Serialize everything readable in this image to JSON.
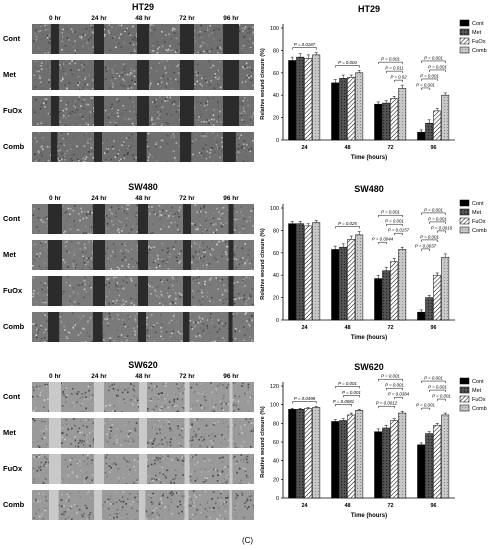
{
  "caption": "(C)",
  "time_columns": [
    "0 hr",
    "24 hr",
    "48 hr",
    "72 hr",
    "96 hr"
  ],
  "treatment_rows": [
    "Cont",
    "Met",
    "FuOx",
    "Comb"
  ],
  "legend": [
    "Cont",
    "Met",
    "FuOx",
    "Comb"
  ],
  "colors": {
    "cont": "#000000",
    "met": "#444444",
    "fuox": "#ffffff",
    "comb": "#bdbdbd"
  },
  "panels": [
    {
      "micrograph_title": "HT29",
      "chart_data": {
        "type": "bar",
        "title": "HT29",
        "xlabel": "Time (hours)",
        "ylabel": "Relative wound closure (%)",
        "ylim": [
          0,
          100
        ],
        "yticks": [
          "0",
          "20",
          "40",
          "60",
          "80",
          "100"
        ],
        "categories": [
          "24",
          "48",
          "72",
          "96"
        ],
        "series": [
          {
            "name": "Cont",
            "values": [
              71,
              51,
              32,
              7
            ]
          },
          {
            "name": "Met",
            "values": [
              74,
              55,
              33,
              15
            ]
          },
          {
            "name": "FuOx",
            "values": [
              73,
              56,
              37,
              26
            ]
          },
          {
            "name": "Comb",
            "values": [
              76,
              60,
              46,
              40
            ]
          }
        ],
        "errors": [
          [
            3,
            3,
            2,
            2
          ],
          [
            3,
            3,
            2,
            3
          ],
          [
            3,
            2,
            2,
            2
          ],
          [
            2,
            2,
            3,
            2
          ]
        ],
        "annotations": [
          {
            "group": 0,
            "from": 0,
            "to": 3,
            "text": "P = 0.0187"
          },
          {
            "group": 1,
            "from": 0,
            "to": 3,
            "text": "P = 0.004"
          },
          {
            "group": 2,
            "from": 0,
            "to": 3,
            "text": "P = 0.001"
          },
          {
            "group": 2,
            "from": 1,
            "to": 3,
            "text": "P = 0.011"
          },
          {
            "group": 2,
            "from": 2,
            "to": 3,
            "text": "P = 0.02"
          },
          {
            "group": 3,
            "from": 0,
            "to": 3,
            "text": "P = 0.001"
          },
          {
            "group": 3,
            "from": 1,
            "to": 3,
            "text": "P = 0.001"
          },
          {
            "group": 3,
            "from": 0,
            "to": 2,
            "text": "P = 0.001"
          },
          {
            "group": 3,
            "from": 0,
            "to": 1,
            "text": "P = 0.001"
          }
        ]
      }
    },
    {
      "micrograph_title": "SW480",
      "chart_data": {
        "type": "bar",
        "title": "SW480",
        "xlabel": "Time (hours)",
        "ylabel": "Relative wound closure (%)",
        "ylim": [
          0,
          100
        ],
        "yticks": [
          "0",
          "20",
          "40",
          "60",
          "80",
          "100"
        ],
        "categories": [
          "24",
          "48",
          "72",
          "96"
        ],
        "series": [
          {
            "name": "Cont",
            "values": [
              86,
              63,
              37,
              7
            ]
          },
          {
            "name": "Met",
            "values": [
              86,
              65,
              44,
              20
            ]
          },
          {
            "name": "FuOx",
            "values": [
              84,
              72,
              52,
              40
            ]
          },
          {
            "name": "Comb",
            "values": [
              87,
              76,
              63,
              56
            ]
          }
        ],
        "errors": [
          [
            2,
            3,
            3,
            2
          ],
          [
            2,
            3,
            3,
            2
          ],
          [
            2,
            3,
            3,
            2
          ],
          [
            2,
            3,
            2,
            3
          ]
        ],
        "annotations": [
          {
            "group": 1,
            "from": 0,
            "to": 3,
            "text": "P = 0.025"
          },
          {
            "group": 2,
            "from": 0,
            "to": 3,
            "text": "P = 0.001"
          },
          {
            "group": 2,
            "from": 1,
            "to": 3,
            "text": "P = 0.001"
          },
          {
            "group": 2,
            "from": 2,
            "to": 3,
            "text": "P = 0.0157"
          },
          {
            "group": 2,
            "from": 0,
            "to": 1,
            "text": "P = 0.0044"
          },
          {
            "group": 3,
            "from": 0,
            "to": 3,
            "text": "P = 0.001"
          },
          {
            "group": 3,
            "from": 1,
            "to": 3,
            "text": "P = 0.001"
          },
          {
            "group": 3,
            "from": 2,
            "to": 3,
            "text": "P = 0.0016"
          },
          {
            "group": 3,
            "from": 0,
            "to": 2,
            "text": "P = 0.001"
          },
          {
            "group": 3,
            "from": 0,
            "to": 1,
            "text": "P = 0.0037"
          }
        ]
      }
    },
    {
      "micrograph_title": "SW620",
      "chart_data": {
        "type": "bar",
        "title": "SW620",
        "xlabel": "Time (hours)",
        "ylabel": "Relative wound closure (%)",
        "ylim": [
          0,
          120
        ],
        "yticks": [
          "0",
          "20",
          "40",
          "60",
          "80",
          "100",
          "120"
        ],
        "categories": [
          "24",
          "48",
          "72",
          "96"
        ],
        "series": [
          {
            "name": "Cont",
            "values": [
              95,
              82,
              71,
              57
            ]
          },
          {
            "name": "Met",
            "values": [
              95,
              83,
              75,
              69
            ]
          },
          {
            "name": "FuOx",
            "values": [
              96,
              89,
              83,
              78
            ]
          },
          {
            "name": "Comb",
            "values": [
              97,
              94,
              91,
              89
            ]
          }
        ],
        "errors": [
          [
            1,
            2,
            3,
            2
          ],
          [
            1,
            2,
            3,
            2
          ],
          [
            1,
            2,
            2,
            2
          ],
          [
            1,
            1,
            2,
            2
          ]
        ],
        "annotations": [
          {
            "group": 0,
            "from": 0,
            "to": 3,
            "text": "P = 0.0498"
          },
          {
            "group": 1,
            "from": 0,
            "to": 3,
            "text": "P = 0.001"
          },
          {
            "group": 1,
            "from": 1,
            "to": 3,
            "text": "P = 0.001"
          },
          {
            "group": 1,
            "from": 0,
            "to": 2,
            "text": "P = 0.0081"
          },
          {
            "group": 2,
            "from": 0,
            "to": 3,
            "text": "P = 0.001"
          },
          {
            "group": 2,
            "from": 1,
            "to": 3,
            "text": "P = 0.001"
          },
          {
            "group": 2,
            "from": 2,
            "to": 3,
            "text": "P = 0.0384"
          },
          {
            "group": 2,
            "from": 0,
            "to": 2,
            "text": "P = 0.0012"
          },
          {
            "group": 3,
            "from": 0,
            "to": 3,
            "text": "P = 0.001"
          },
          {
            "group": 3,
            "from": 1,
            "to": 3,
            "text": "P = 0.001"
          },
          {
            "group": 3,
            "from": 2,
            "to": 3,
            "text": "P = 0.001"
          },
          {
            "group": 3,
            "from": 0,
            "to": 1,
            "text": "P = 0.001"
          }
        ]
      }
    }
  ]
}
